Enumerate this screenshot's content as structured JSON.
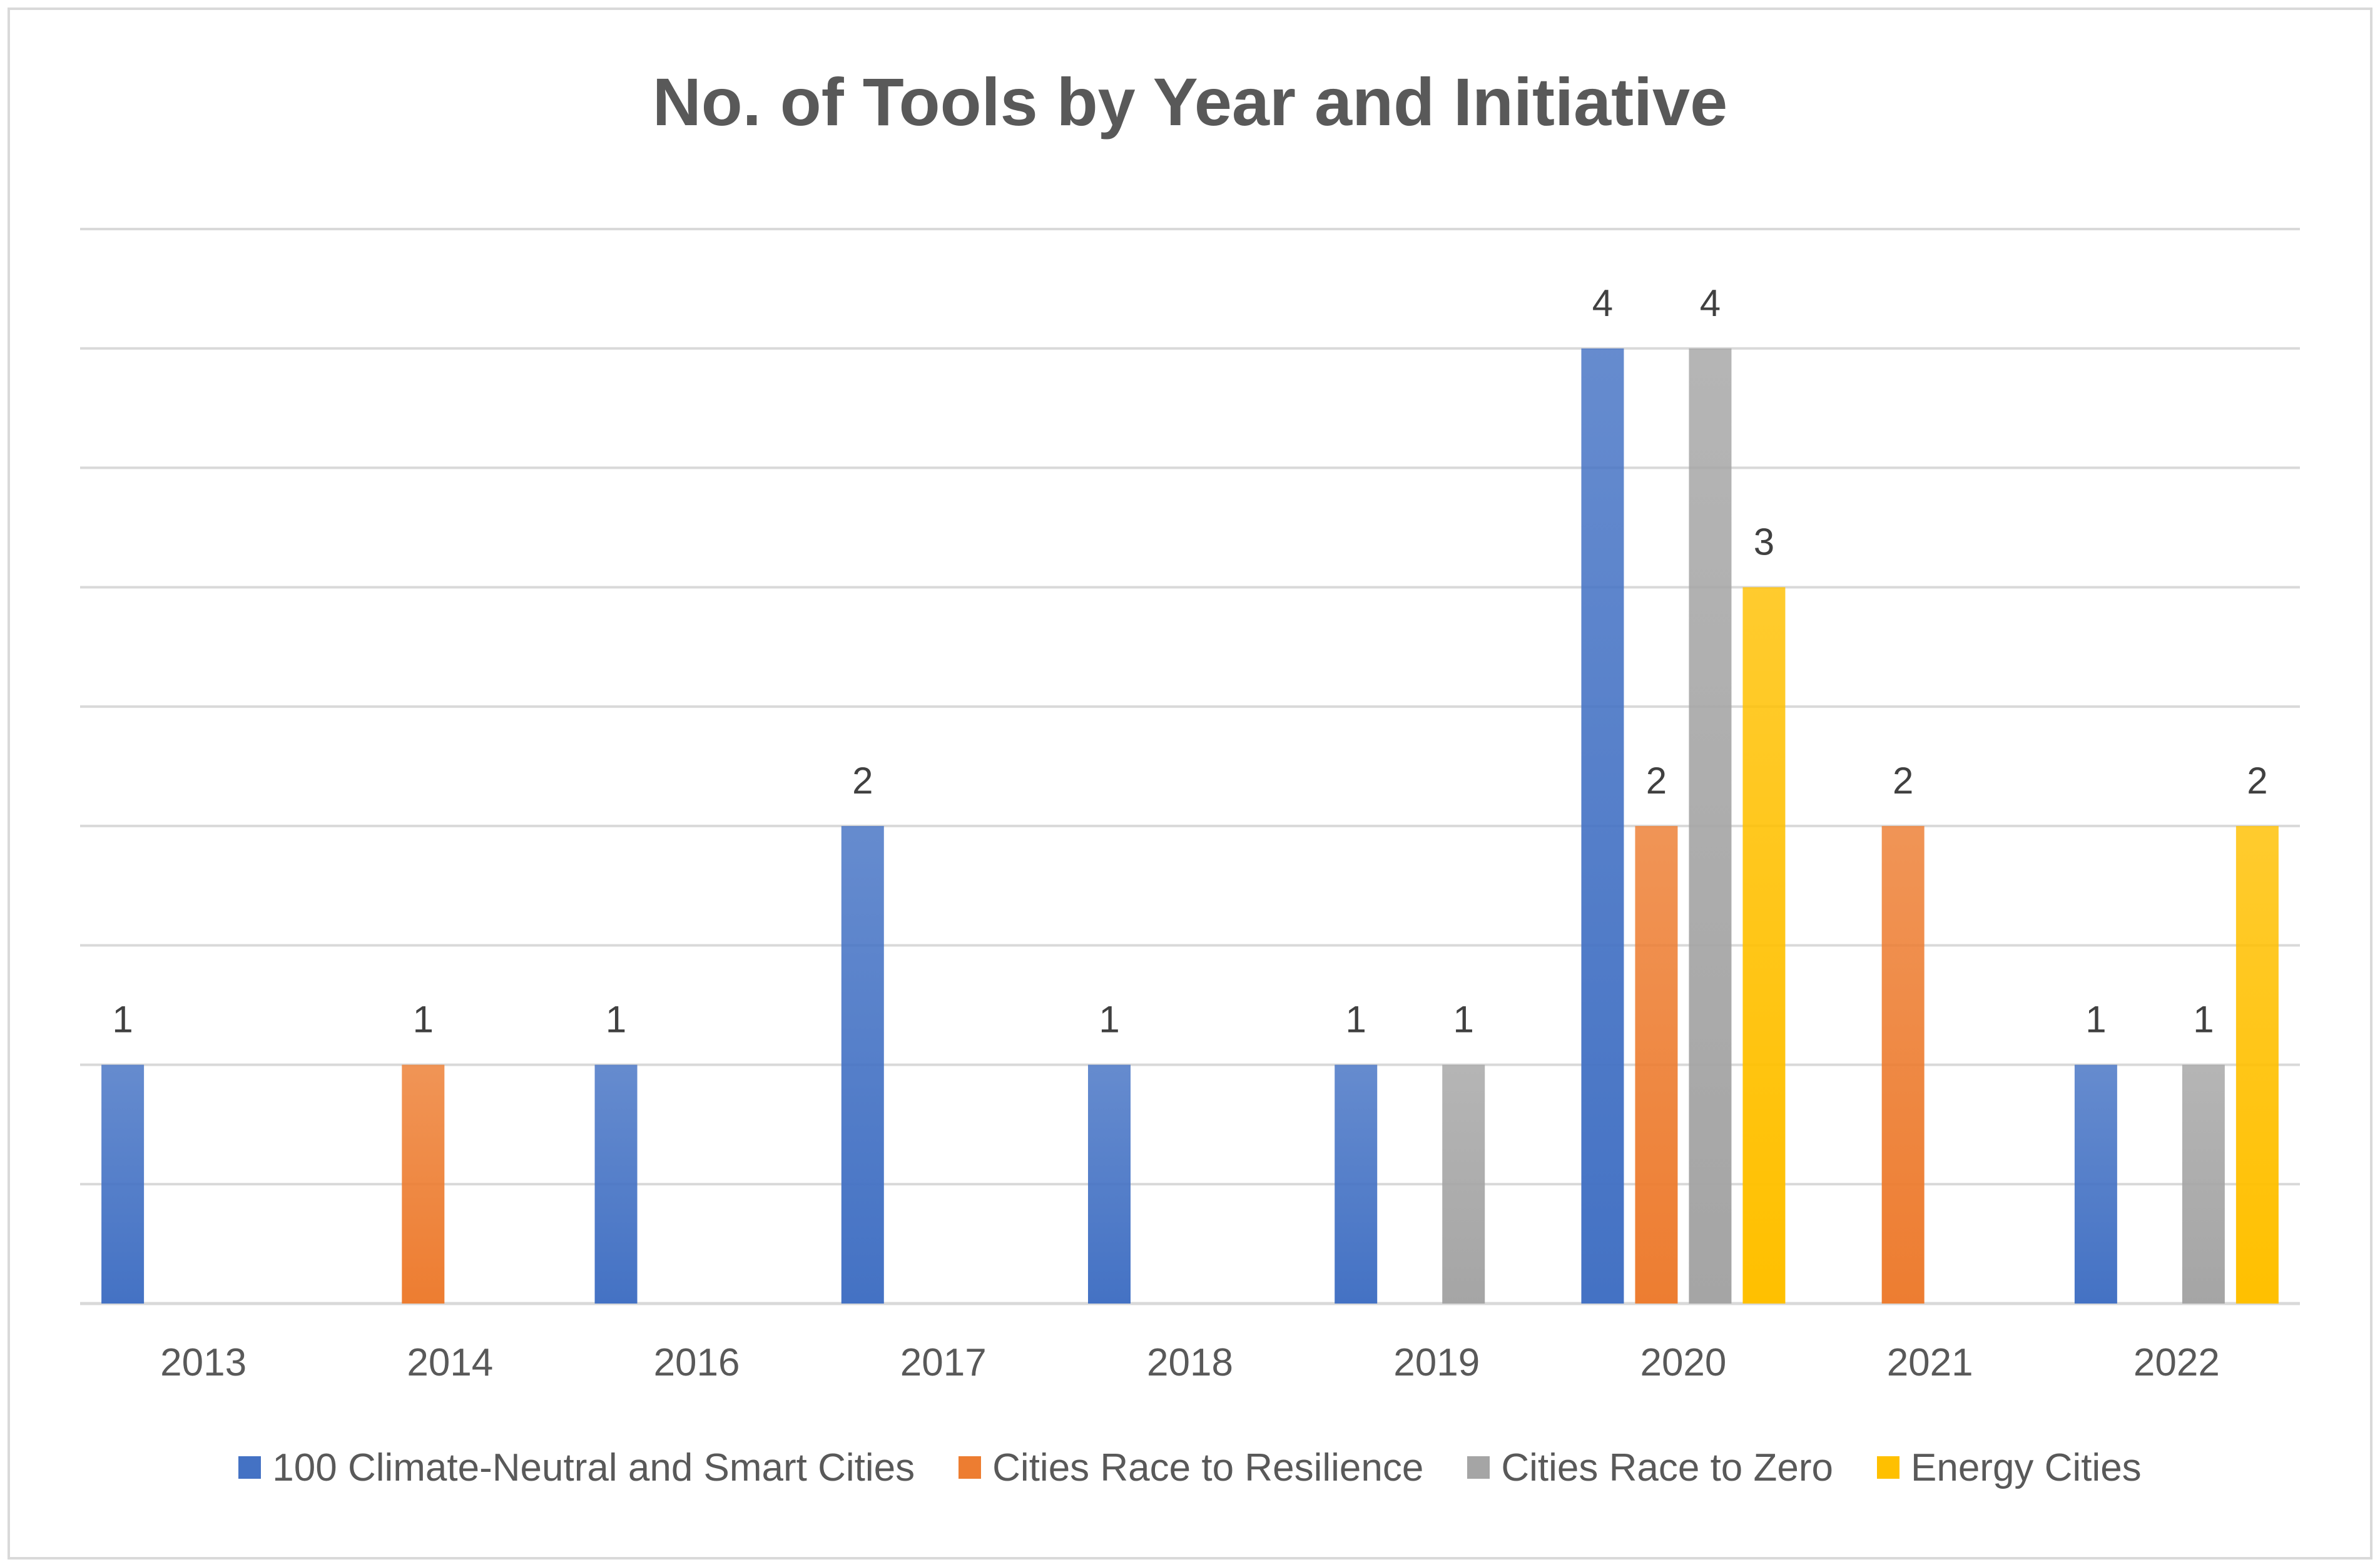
{
  "chart_data": {
    "type": "bar",
    "title": "No. of Tools by Year and Initiative",
    "categories": [
      "2013",
      "2014",
      "2016",
      "2017",
      "2018",
      "2019",
      "2020",
      "2021",
      "2022"
    ],
    "series": [
      {
        "name": "100 Climate-Neutral and Smart Cities",
        "color": "#4472c4",
        "values": [
          1,
          null,
          1,
          2,
          1,
          1,
          4,
          null,
          1
        ]
      },
      {
        "name": "Cities Race to Resilience",
        "color": "#ed7d31",
        "values": [
          null,
          1,
          null,
          null,
          null,
          null,
          2,
          2,
          null
        ]
      },
      {
        "name": "Cities Race to Zero",
        "color": "#a5a5a5",
        "values": [
          null,
          null,
          null,
          null,
          null,
          1,
          4,
          null,
          1
        ]
      },
      {
        "name": "Energy Cities",
        "color": "#ffc000",
        "values": [
          null,
          null,
          null,
          null,
          null,
          null,
          3,
          null,
          2
        ]
      }
    ],
    "ylim": [
      0,
      4.5
    ],
    "y_gridline_step": 0.5,
    "grid": true,
    "legend_position": "bottom",
    "data_labels": true
  }
}
